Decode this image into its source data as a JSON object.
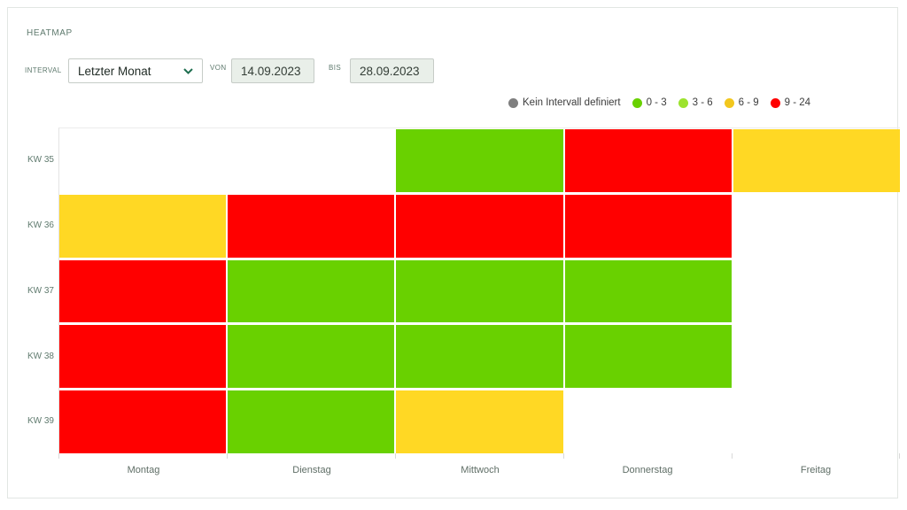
{
  "card": {
    "title": "HEATMAP"
  },
  "controls": {
    "interval_label": "INTERVAL",
    "interval_value": "Letzter Monat",
    "von_label": "VON",
    "von_value": "14.09.2023",
    "bis_label": "BIS",
    "bis_value": "28.09.2023"
  },
  "legend": {
    "items": [
      {
        "label": "Kein Intervall definiert",
        "color": "#7f7f7f"
      },
      {
        "label": "0 - 3",
        "color": "#69d100"
      },
      {
        "label": "3 - 6",
        "color": "#9ce32e"
      },
      {
        "label": "6 - 9",
        "color": "#f2c71e"
      },
      {
        "label": "9 - 24",
        "color": "#ff0000"
      }
    ]
  },
  "chart_data": {
    "type": "heatmap",
    "title": "HEATMAP",
    "x_categories": [
      "Montag",
      "Dienstag",
      "Mittwoch",
      "Donnerstag",
      "Freitag"
    ],
    "y_categories": [
      "KW 35",
      "KW 36",
      "KW 37",
      "KW 38",
      "KW 39"
    ],
    "legend_buckets": [
      "Kein Intervall definiert",
      "0 - 3",
      "3 - 6",
      "6 - 9",
      "9 - 24"
    ],
    "palette": {
      "0-3": "#69d100",
      "3-6": "#9ce32e",
      "6-9": "#ffd824",
      "9-24": "#ff0000",
      "none": "#ffffff"
    },
    "rows": [
      [
        null,
        null,
        "0-3",
        "9-24",
        "6-9"
      ],
      [
        "6-9",
        "9-24",
        "9-24",
        "9-24",
        null
      ],
      [
        "9-24",
        "0-3",
        "0-3",
        "0-3",
        null
      ],
      [
        "9-24",
        "0-3",
        "0-3",
        "0-3",
        null
      ],
      [
        "9-24",
        "0-3",
        "6-9",
        null,
        null
      ]
    ]
  },
  "colors": {
    "accent_text": "#5f7a6e",
    "chevron": "#1e6e4f",
    "input_bg": "#e9efe9",
    "input_border": "#c6ccc7"
  }
}
